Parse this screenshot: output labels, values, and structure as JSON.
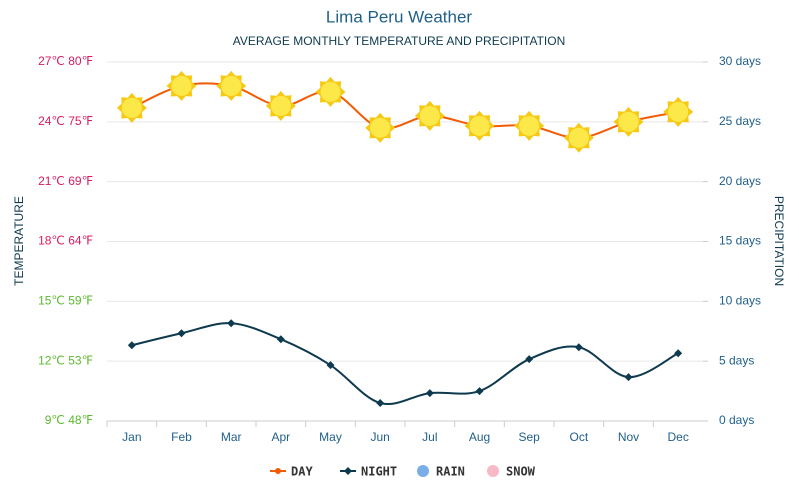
{
  "chart_data": {
    "type": "line",
    "title": "Lima Peru Weather",
    "subtitle": "AVERAGE MONTHLY TEMPERATURE AND PRECIPITATION",
    "ylabel": "TEMPERATURE",
    "y2label": "PRECIPITATION",
    "categories": [
      "Jan",
      "Feb",
      "Mar",
      "Apr",
      "May",
      "Jun",
      "Jul",
      "Aug",
      "Sep",
      "Oct",
      "Nov",
      "Dec"
    ],
    "series": [
      {
        "name": "DAY",
        "color": "#f25c05",
        "values": [
          24.7,
          25.8,
          25.8,
          24.8,
          25.5,
          23.7,
          24.3,
          23.8,
          23.8,
          23.2,
          24.0,
          24.5
        ]
      },
      {
        "name": "NIGHT",
        "color": "#0e3a4f",
        "values": [
          12.8,
          13.4,
          13.9,
          13.1,
          11.8,
          9.9,
          10.4,
          10.5,
          12.1,
          12.7,
          11.2,
          12.4
        ]
      },
      {
        "name": "RAIN",
        "color": "#7aaee8",
        "axis": "y2",
        "values": [
          0,
          0,
          0,
          0,
          0,
          0,
          0,
          0,
          0,
          0,
          0,
          0
        ]
      },
      {
        "name": "SNOW",
        "color": "#f8b9c7",
        "axis": "y2",
        "values": [
          0,
          0,
          0,
          0,
          0,
          0,
          0,
          0,
          0,
          0,
          0,
          0
        ]
      }
    ],
    "ylim": [
      9,
      27
    ],
    "yticks": [
      {
        "value": 27,
        "label": "27℃ 80℉"
      },
      {
        "value": 24,
        "label": "24℃ 75℉"
      },
      {
        "value": 21,
        "label": "21℃ 69℉"
      },
      {
        "value": 18,
        "label": "18℃ 64℉"
      },
      {
        "value": 15,
        "label": "15℃ 59℉"
      },
      {
        "value": 12,
        "label": "12℃ 53℉"
      },
      {
        "value": 9,
        "label": "9℃ 48℉"
      }
    ],
    "y2lim": [
      0,
      30
    ],
    "y2ticks": [
      {
        "value": 30,
        "label": "30 days"
      },
      {
        "value": 25,
        "label": "25 days"
      },
      {
        "value": 20,
        "label": "20 days"
      },
      {
        "value": 15,
        "label": "15 days"
      },
      {
        "value": 10,
        "label": "10 days"
      },
      {
        "value": 5,
        "label": "5 days"
      },
      {
        "value": 0,
        "label": "0 days"
      }
    ],
    "grid": true
  }
}
